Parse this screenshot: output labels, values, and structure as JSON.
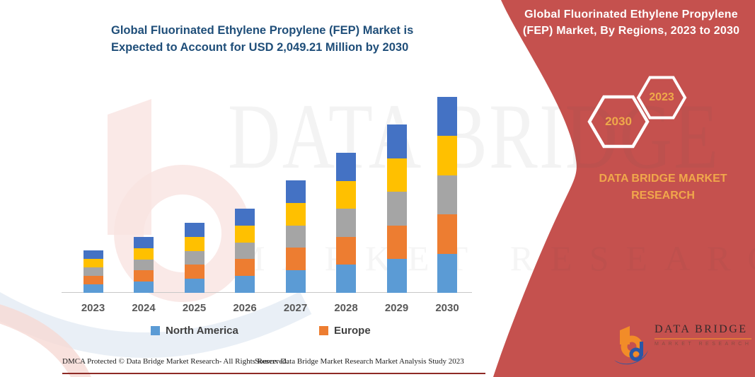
{
  "left_panel": {
    "title_line1": "Global Fluorinated Ethylene Propylene (FEP) Market is",
    "title_line2": "Expected to Account for USD 2,049.21 Million by 2030",
    "footer_left": "DMCA Protected © Data Bridge Market Research-  All Rights Reserved.",
    "footer_right": "Source: Data Bridge Market Research  Market Analysis Study 2023"
  },
  "chart_data": {
    "type": "bar",
    "stacked": true,
    "title": "Global Fluorinated Ethylene Propylene (FEP) Market is Expected to Account for USD 2,049.21 Million by 2030",
    "unit": "USD Million",
    "categories": [
      "2023",
      "2024",
      "2025",
      "2026",
      "2027",
      "2028",
      "2029",
      "2030"
    ],
    "totals_estimated": [
      444,
      584,
      732,
      880,
      1176,
      1465,
      1760,
      2049.21
    ],
    "series": [
      {
        "name": "North America",
        "color": "#5B9BD5",
        "labeled_in_legend": true,
        "values_estimated": [
          88.8,
          116.8,
          146.4,
          176.0,
          235.2,
          293.0,
          352.0,
          409.8
        ]
      },
      {
        "name": "Europe",
        "color": "#ED7D31",
        "labeled_in_legend": true,
        "values_estimated": [
          88.8,
          116.8,
          146.4,
          176.0,
          235.2,
          293.0,
          352.0,
          409.8
        ]
      },
      {
        "name": "unlabeled-region-gray",
        "color": "#A5A5A5",
        "labeled_in_legend": false,
        "values_estimated": [
          88.8,
          116.8,
          146.4,
          176.0,
          235.2,
          293.0,
          352.0,
          409.8
        ]
      },
      {
        "name": "unlabeled-region-yellow",
        "color": "#FFC000",
        "labeled_in_legend": false,
        "values_estimated": [
          88.8,
          116.8,
          146.4,
          176.0,
          235.2,
          293.0,
          352.0,
          409.8
        ]
      },
      {
        "name": "unlabeled-region-darkblue",
        "color": "#4472C4",
        "labeled_in_legend": false,
        "values_estimated": [
          88.8,
          116.8,
          146.4,
          176.0,
          235.2,
          293.0,
          352.0,
          409.8
        ]
      }
    ],
    "ylim": [
      0,
      2100
    ],
    "gridlines": false,
    "axis_labels_shown": false,
    "legend_position": "bottom",
    "note": "Only the 2030 total (USD 2,049.21 Million) is stated on screen; yearly totals and per-region values are estimated from bar heights. Each stack appears evenly split into 5 regions; only North America and Europe are named in the legend."
  },
  "legend": {
    "items": [
      {
        "label": "North America",
        "color": "#5B9BD5"
      },
      {
        "label": "Europe",
        "color": "#ED7D31"
      }
    ]
  },
  "banner": {
    "title_line1": "Global Fluorinated Ethylene Propylene",
    "title_line2": "(FEP) Market, By Regions, 2023 to 2030",
    "hexagons": [
      {
        "label": "2030"
      },
      {
        "label": "2023"
      }
    ],
    "brand_line1": "DATA BRIDGE MARKET",
    "brand_line2": "RESEARCH",
    "colors": {
      "banner_red": "#C5514E",
      "accent_gold": "#EFA94A",
      "hex_border": "#FFFFFF"
    }
  },
  "logo": {
    "name": "DATA BRIDGE",
    "subtext": "MARKET RESEARCH"
  },
  "watermark": {
    "line1": "DATA BRIDGE",
    "line2": "MARKET RESEARCH"
  }
}
